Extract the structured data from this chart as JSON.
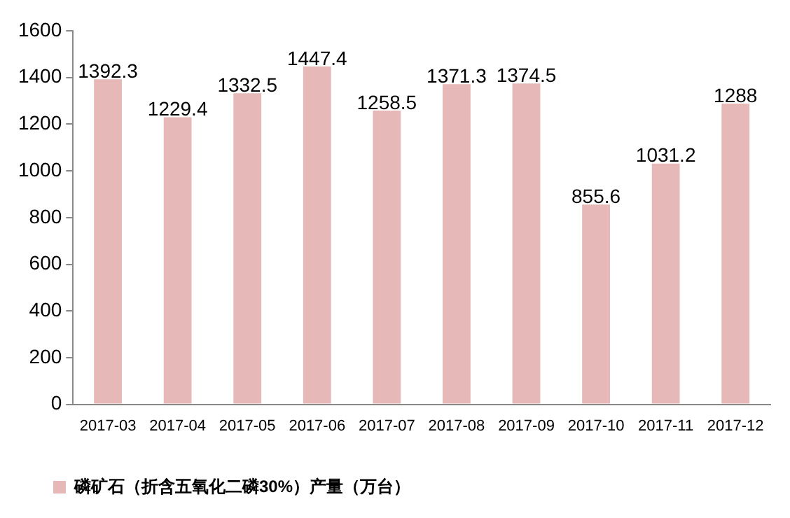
{
  "chart_data": {
    "type": "bar",
    "categories": [
      "2017-03",
      "2017-04",
      "2017-05",
      "2017-06",
      "2017-07",
      "2017-08",
      "2017-09",
      "2017-10",
      "2017-11",
      "2017-12"
    ],
    "series": [
      {
        "name": "磷矿石（折含五氧化二磷30%）产量（万台）",
        "color": "#e6b8b7",
        "values": [
          1392.3,
          1229.4,
          1332.5,
          1447.4,
          1258.5,
          1371.3,
          1374.5,
          855.6,
          1031.2,
          1288
        ]
      }
    ],
    "ylim": [
      0,
      1600
    ],
    "yticks": [
      0,
      200,
      400,
      600,
      800,
      1000,
      1200,
      1400,
      1600
    ],
    "grid": false,
    "legend": "bottom left",
    "data_labels": true
  }
}
